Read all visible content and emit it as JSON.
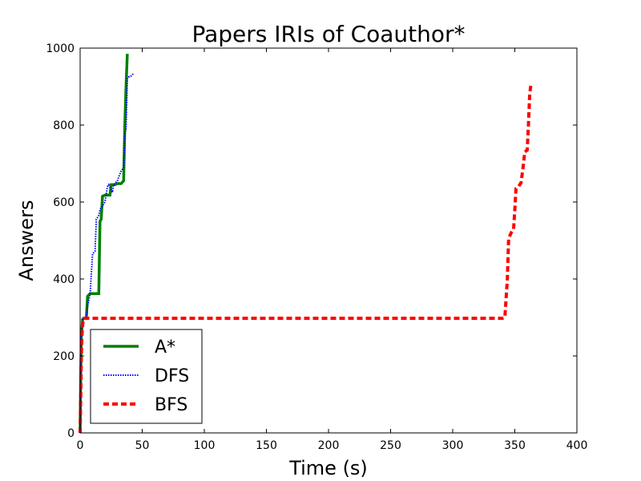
{
  "chart_data": {
    "type": "line",
    "title": "Papers IRIs of Coauthor*",
    "xlabel": "Time (s)",
    "ylabel": "Answers",
    "xlim": [
      0,
      400
    ],
    "ylim": [
      0,
      1000
    ],
    "x_ticks": [
      0,
      50,
      100,
      150,
      200,
      250,
      300,
      350,
      400
    ],
    "y_ticks": [
      0,
      200,
      400,
      600,
      800,
      1000
    ],
    "grid": false,
    "legend_position": "lower-left",
    "series": [
      {
        "name": "A*",
        "color": "#008000",
        "style": "solid",
        "x": [
          0,
          0.5,
          1,
          2,
          3,
          5,
          6,
          8,
          10,
          15,
          16,
          17,
          18,
          20,
          24,
          25,
          28,
          30,
          33,
          35,
          36,
          37,
          38
        ],
        "y": [
          0,
          150,
          250,
          295,
          298,
          300,
          355,
          362,
          362,
          362,
          550,
          555,
          615,
          618,
          618,
          645,
          645,
          648,
          648,
          655,
          800,
          900,
          985
        ]
      },
      {
        "name": "DFS",
        "color": "#0000ff",
        "style": "dotted",
        "x": [
          0,
          0.5,
          1,
          2,
          3,
          5,
          6,
          8,
          10,
          12,
          13,
          15,
          16,
          18,
          20,
          22,
          23,
          26,
          27,
          30,
          31,
          33,
          35,
          36,
          37,
          38,
          39,
          40,
          42,
          43
        ],
        "y": [
          0,
          150,
          250,
          295,
          298,
          300,
          330,
          360,
          465,
          472,
          555,
          565,
          580,
          590,
          600,
          640,
          645,
          625,
          645,
          655,
          665,
          680,
          690,
          780,
          790,
          920,
          925,
          925,
          930,
          935
        ]
      },
      {
        "name": "BFS",
        "color": "#ff0000",
        "style": "dashed",
        "x": [
          0,
          0.5,
          1,
          1.5,
          2,
          2.5,
          3,
          50,
          100,
          200,
          300,
          340,
          342,
          344,
          345,
          347,
          349,
          350,
          351,
          353,
          355,
          357,
          358,
          360,
          361,
          362,
          363
        ],
        "y": [
          0,
          100,
          200,
          255,
          280,
          292,
          298,
          298,
          298,
          298,
          298,
          298,
          300,
          400,
          505,
          520,
          530,
          580,
          635,
          640,
          650,
          700,
          730,
          735,
          800,
          880,
          905
        ]
      }
    ]
  }
}
